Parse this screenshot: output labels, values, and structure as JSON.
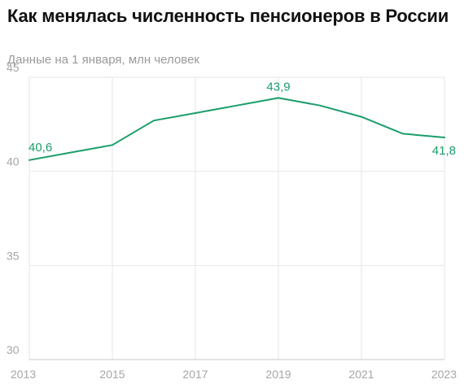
{
  "chart_data": {
    "type": "line",
    "title": "Как менялась численность пенсионеров в России",
    "subtitle": "Данные на 1 января, млн человек",
    "xlabel": "",
    "ylabel": "",
    "x": [
      2013,
      2014,
      2015,
      2016,
      2017,
      2018,
      2019,
      2020,
      2021,
      2022,
      2023
    ],
    "series": [
      {
        "values": [
          40.6,
          41.0,
          41.4,
          42.7,
          43.1,
          43.5,
          43.9,
          43.5,
          42.9,
          42.0,
          41.8
        ]
      }
    ],
    "ylim": [
      30,
      45
    ],
    "y_ticks": [
      "30",
      "35",
      "40",
      "45"
    ],
    "x_ticks": [
      "2013",
      "2015",
      "2017",
      "2019",
      "2021",
      "2023"
    ],
    "data_labels": [
      {
        "index": 0,
        "text": "40,6"
      },
      {
        "index": 6,
        "text": "43,9"
      },
      {
        "index": 10,
        "text": "41,8"
      }
    ],
    "grid": true,
    "colors": {
      "line": "#1a9e6a",
      "grid": "#e6e6e6",
      "axis": "#c8c8c8",
      "tick_text": "#a6a6a6"
    }
  }
}
